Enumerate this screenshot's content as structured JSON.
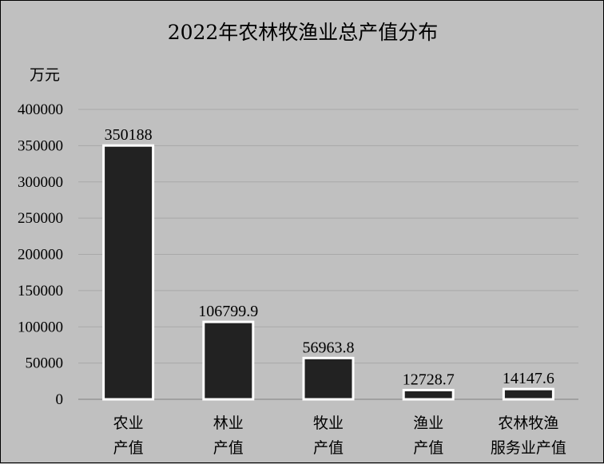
{
  "chart_data": {
    "type": "bar",
    "title": "2022年农林牧渔业总产值分布",
    "ylabel": "万元",
    "xlabel": "",
    "categories": [
      [
        "农业",
        "产值"
      ],
      [
        "林业",
        "产值"
      ],
      [
        "牧业",
        "产值"
      ],
      [
        "渔业",
        "产值"
      ],
      [
        "农林牧渔",
        "服务业产值"
      ]
    ],
    "values": [
      350188,
      106799.9,
      56963.8,
      12728.7,
      14147.6
    ],
    "data_labels": [
      "350188",
      "106799.9",
      "56963.8",
      "12728.7",
      "14147.6"
    ],
    "y_ticks": [
      "0",
      "50000",
      "100000",
      "150000",
      "200000",
      "250000",
      "300000",
      "350000",
      "400000"
    ],
    "ylim": [
      0,
      400000
    ],
    "grid": true,
    "bar_color": "#222222",
    "bar_border_color": "#ffffff",
    "background_color": "#c0c0c0"
  }
}
